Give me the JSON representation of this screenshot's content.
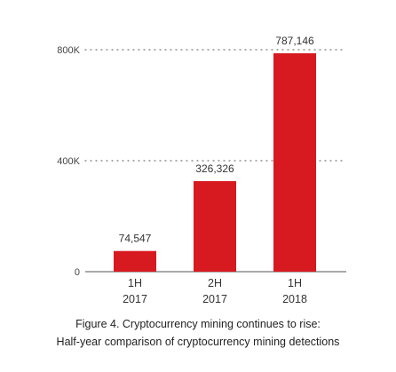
{
  "colors": {
    "bar": "#d71920",
    "grid": "#777777",
    "axis": "#555555"
  },
  "chart_data": {
    "type": "bar",
    "categories": [
      [
        "1H",
        "2017"
      ],
      [
        "2H",
        "2017"
      ],
      [
        "1H",
        "2018"
      ]
    ],
    "values": [
      74547,
      326326,
      787146
    ],
    "data_labels": [
      "74,547",
      "326,326",
      "787,146"
    ],
    "yticks": [
      {
        "value": 0,
        "label": "0"
      },
      {
        "value": 400000,
        "label": "400K"
      },
      {
        "value": 800000,
        "label": "800K"
      }
    ],
    "ylim": [
      0,
      800000
    ],
    "grid": "dotted horizontal",
    "legend": "none"
  },
  "caption": {
    "line1": "Figure 4. Cryptocurrency mining continues to rise:",
    "line2": "Half-year comparison of cryptocurrency mining detections"
  }
}
